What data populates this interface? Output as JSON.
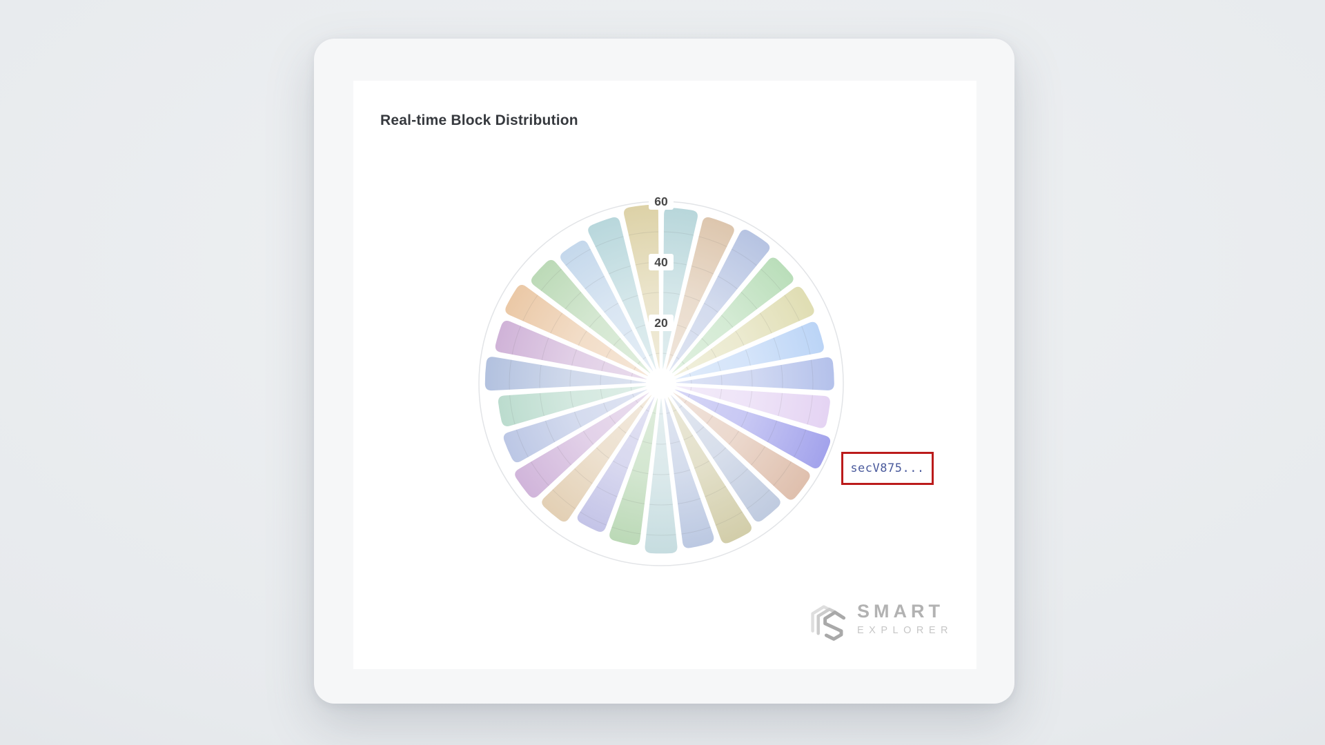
{
  "header": {
    "title": "Real-time Block Distribution"
  },
  "chart_data": {
    "type": "polar-rose-bar",
    "title": "Real-time Block Distribution",
    "sector_count": 27,
    "start_angle_deg": 90,
    "radial_max": 60,
    "radial_ticks": [
      20,
      40,
      60
    ],
    "rings_every": 10,
    "grid": true,
    "legend": "none",
    "outer_ring_color": "#e2e4e7",
    "tick_label_color": "#474747",
    "segments": [
      {
        "value": 58,
        "color": "#a9ced3"
      },
      {
        "value": 57,
        "color": "#d5b99b"
      },
      {
        "value": 58,
        "color": "#a7b7dc"
      },
      {
        "value": 56,
        "color": "#a9d6a9"
      },
      {
        "value": 56,
        "color": "#d8d5a0"
      },
      {
        "value": 55,
        "color": "#a9c9f4"
      },
      {
        "value": 57,
        "color": "#a3b3e6"
      },
      {
        "value": 56,
        "color": "#dec9f0"
      },
      {
        "value": 59,
        "color": "#9191e8"
      },
      {
        "value": 58,
        "color": "#d8b29c"
      },
      {
        "value": 56,
        "color": "#b0bed8"
      },
      {
        "value": 57,
        "color": "#c8c296"
      },
      {
        "value": 55,
        "color": "#aabada"
      },
      {
        "value": 56,
        "color": "#b8d4d8"
      },
      {
        "value": 54,
        "color": "#a8cea2"
      },
      {
        "value": 53,
        "color": "#b2b2e0"
      },
      {
        "value": 56,
        "color": "#dcc4a2"
      },
      {
        "value": 57,
        "color": "#c6a4d2"
      },
      {
        "value": 55,
        "color": "#aab8de"
      },
      {
        "value": 54,
        "color": "#a8d2c0"
      },
      {
        "value": 58,
        "color": "#a2b4d8"
      },
      {
        "value": 56,
        "color": "#c4a0ce"
      },
      {
        "value": 57,
        "color": "#e6bc92"
      },
      {
        "value": 55,
        "color": "#aad0a4"
      },
      {
        "value": 54,
        "color": "#b4cde6"
      },
      {
        "value": 57,
        "color": "#a8ced4"
      },
      {
        "value": 59,
        "color": "#d6c996"
      }
    ]
  },
  "annotation": {
    "label": "secV875...",
    "border_color": "#bb1b1b",
    "text_color": "#4a5a9c"
  },
  "brand": {
    "name": "SMART",
    "subtitle": "EXPLORER"
  }
}
